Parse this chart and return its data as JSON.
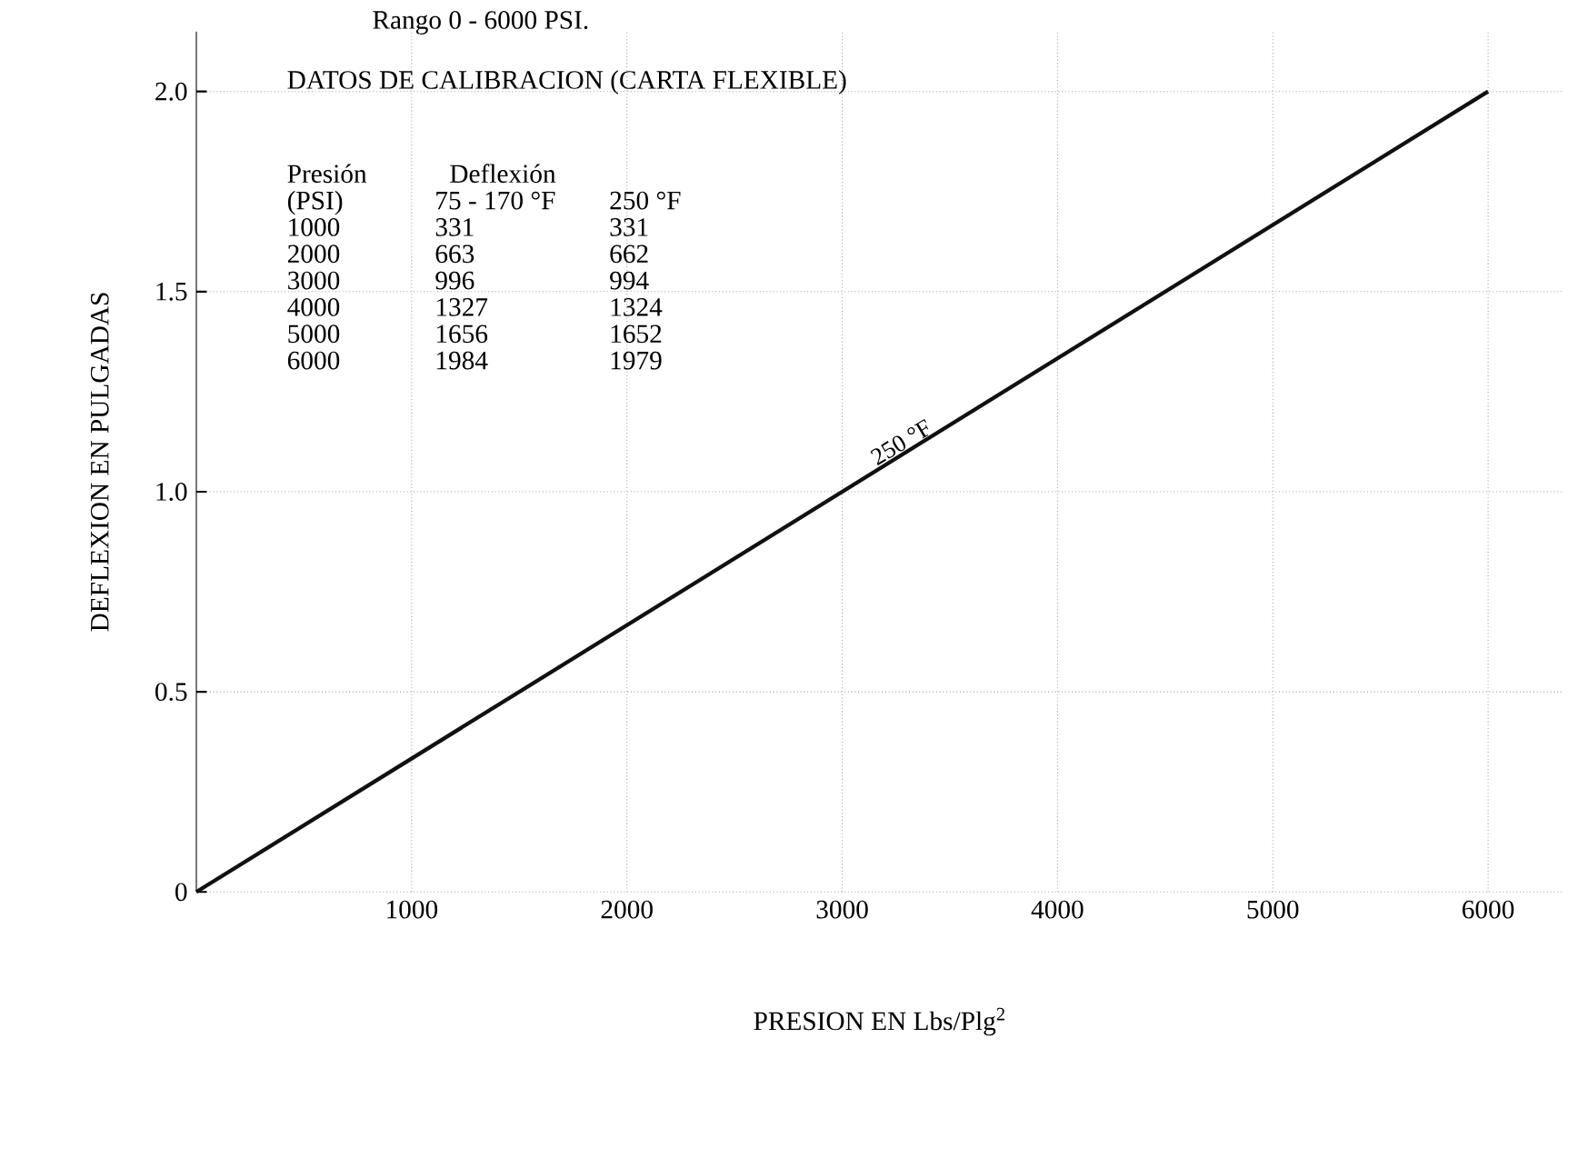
{
  "chart_data": {
    "type": "line",
    "title": "Rango 0 - 6000 PSI.",
    "subtitle": "DATOS DE CALIBRACION (CARTA FLEXIBLE)",
    "xlabel": "PRESION EN Lbs/Plg$^{2}$",
    "ylabel": "DEFLEXION EN PULGADAS",
    "x": [
      0,
      6000
    ],
    "series": [
      {
        "color": "#111111",
        "values": [
          0,
          2.0
        ]
      }
    ],
    "xlim": [
      0,
      6350
    ],
    "ylim": [
      0,
      2.15
    ],
    "xticks": [
      1000,
      2000,
      3000,
      4000,
      5000,
      6000
    ],
    "yticks": [
      0,
      {
        "value": 0.5,
        "label": "0.5"
      },
      {
        "value": 1,
        "label": "1.0"
      },
      {
        "value": 1.5,
        "label": "1.5"
      },
      {
        "value": 2,
        "label": "2.0"
      }
    ],
    "grid": true,
    "line_style": "solid",
    "annotations": [
      {
        "text": "250 °F",
        "x": 3300,
        "y": 1.1
      },
      "Presión",
      "Deflexión",
      "(PSI)",
      "75 - 170 °F",
      "250 °F",
      "1000",
      "331",
      "331",
      "2000",
      "663",
      "662",
      "3000",
      "996",
      "994",
      "4000",
      "1327",
      "1324",
      "5000",
      "1656",
      "1652",
      "6000",
      "1984",
      "1979"
    ]
  }
}
